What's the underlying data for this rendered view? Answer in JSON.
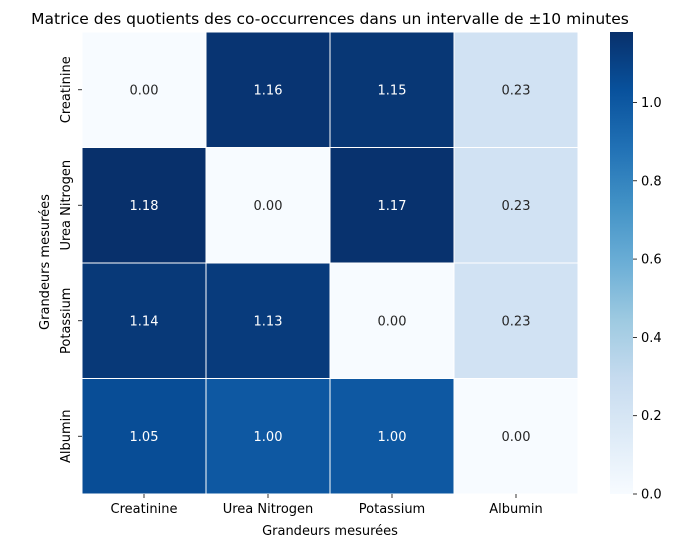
{
  "chart_data": {
    "type": "heatmap",
    "title": "Matrice des quotients des co-occurrences dans un intervalle de ±10 minutes",
    "xlabel": "Grandeurs mesurées",
    "ylabel": "Grandeurs mesurées",
    "x_categories": [
      "Creatinine",
      "Urea Nitrogen",
      "Potassium",
      "Albumin"
    ],
    "y_categories": [
      "Creatinine",
      "Urea Nitrogen",
      "Potassium",
      "Albumin"
    ],
    "values": [
      [
        0.0,
        1.16,
        1.15,
        0.23
      ],
      [
        1.18,
        0.0,
        1.17,
        0.23
      ],
      [
        1.14,
        1.13,
        0.0,
        0.23
      ],
      [
        1.05,
        1.0,
        1.0,
        0.0
      ]
    ],
    "value_format": "2 decimals",
    "colormap": "Blues",
    "vmin": 0.0,
    "vmax": 1.18,
    "colorbar_ticks": [
      "0.0",
      "0.2",
      "0.4",
      "0.6",
      "0.8",
      "1.0"
    ],
    "colorbar_tick_values": [
      0.0,
      0.2,
      0.4,
      0.6,
      0.8,
      1.0
    ],
    "cell_border_color": "#ffffff",
    "annotation_text_light": "#ffffff",
    "annotation_text_dark": "#262626"
  }
}
